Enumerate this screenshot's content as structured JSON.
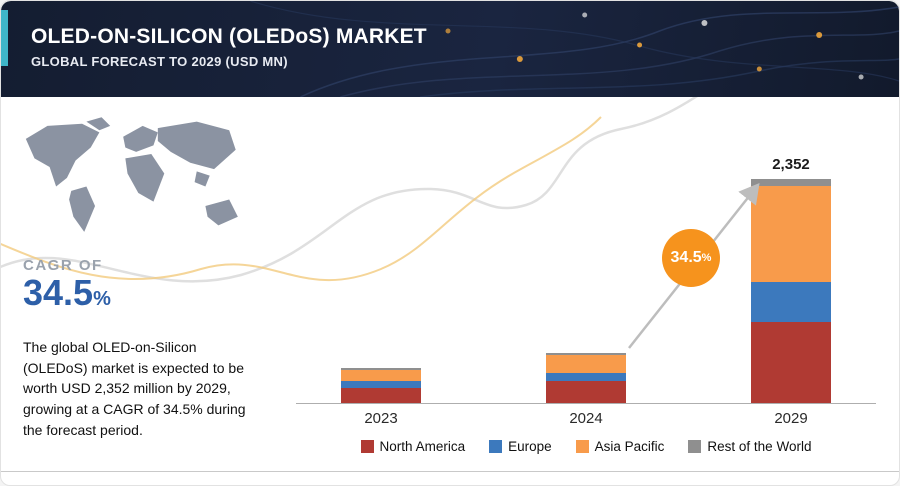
{
  "header": {
    "title": "OLED-ON-SILICON (OLEDoS) MARKET",
    "subtitle": "GLOBAL FORECAST TO 2029 (USD MN)"
  },
  "left_panel": {
    "cagr_label": "CAGR OF",
    "cagr_value": "34.5",
    "cagr_unit": "%",
    "description": "The global OLED-on-Silicon (OLEDoS) market is expected to be worth USD 2,352 million by 2029, growing at a CAGR of 34.5% during the forecast period."
  },
  "badge": {
    "value": "34.5",
    "unit": "%"
  },
  "chart_data": {
    "type": "bar",
    "stacked": true,
    "title": "OLED-ON-SILICON (OLEDoS) MARKET",
    "subtitle": "GLOBAL FORECAST TO 2029 (USD MN)",
    "unit": "USD MN",
    "categories": [
      "2023",
      "2024",
      "2029"
    ],
    "series": [
      {
        "name": "North America",
        "color": "#b03a33",
        "values": [
          160,
          230,
          850
        ]
      },
      {
        "name": "Europe",
        "color": "#3c79bd",
        "values": [
          75,
          85,
          420
        ]
      },
      {
        "name": "Asia Pacific",
        "color": "#f89b4b",
        "values": [
          115,
          190,
          1007
        ]
      },
      {
        "name": "Rest of the World",
        "color": "#8f8f8f",
        "values": [
          20,
          25,
          75
        ]
      }
    ],
    "totals": [
      370,
      530,
      2352
    ],
    "total_labels": [
      "",
      "",
      "2,352"
    ],
    "annotations": {
      "cagr": "34.5%"
    },
    "ylim": [
      0,
      2500
    ],
    "grid": false,
    "legend_position": "bottom"
  }
}
